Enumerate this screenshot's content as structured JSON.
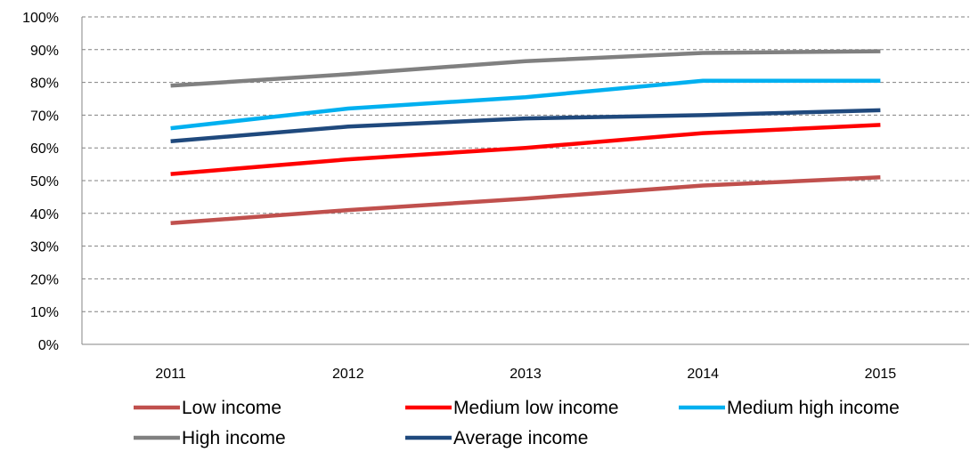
{
  "chart_data": {
    "type": "line",
    "title": "",
    "xlabel": "",
    "ylabel": "",
    "categories": [
      "2011",
      "2012",
      "2013",
      "2014",
      "2015"
    ],
    "ylim": [
      0,
      100
    ],
    "y_ticks": [
      "0%",
      "10%",
      "20%",
      "30%",
      "40%",
      "50%",
      "60%",
      "70%",
      "80%",
      "90%",
      "100%"
    ],
    "grid": "horizontal dashed",
    "legend_position": "bottom",
    "series": [
      {
        "name": "Low income",
        "color": "#C0504D",
        "values": [
          37,
          41,
          44.5,
          48.5,
          51
        ]
      },
      {
        "name": "Medium low income",
        "color": "#FF0000",
        "values": [
          52,
          56.5,
          60,
          64.5,
          67
        ]
      },
      {
        "name": "Medium high income",
        "color": "#00B0F0",
        "values": [
          66,
          72,
          75.5,
          80.5,
          80.5
        ]
      },
      {
        "name": "High income",
        "color": "#808080",
        "values": [
          79,
          82.5,
          86.5,
          89,
          89.5
        ]
      },
      {
        "name": "Average income",
        "color": "#1F497D",
        "values": [
          62,
          66.5,
          69,
          70,
          71.5
        ]
      }
    ]
  }
}
